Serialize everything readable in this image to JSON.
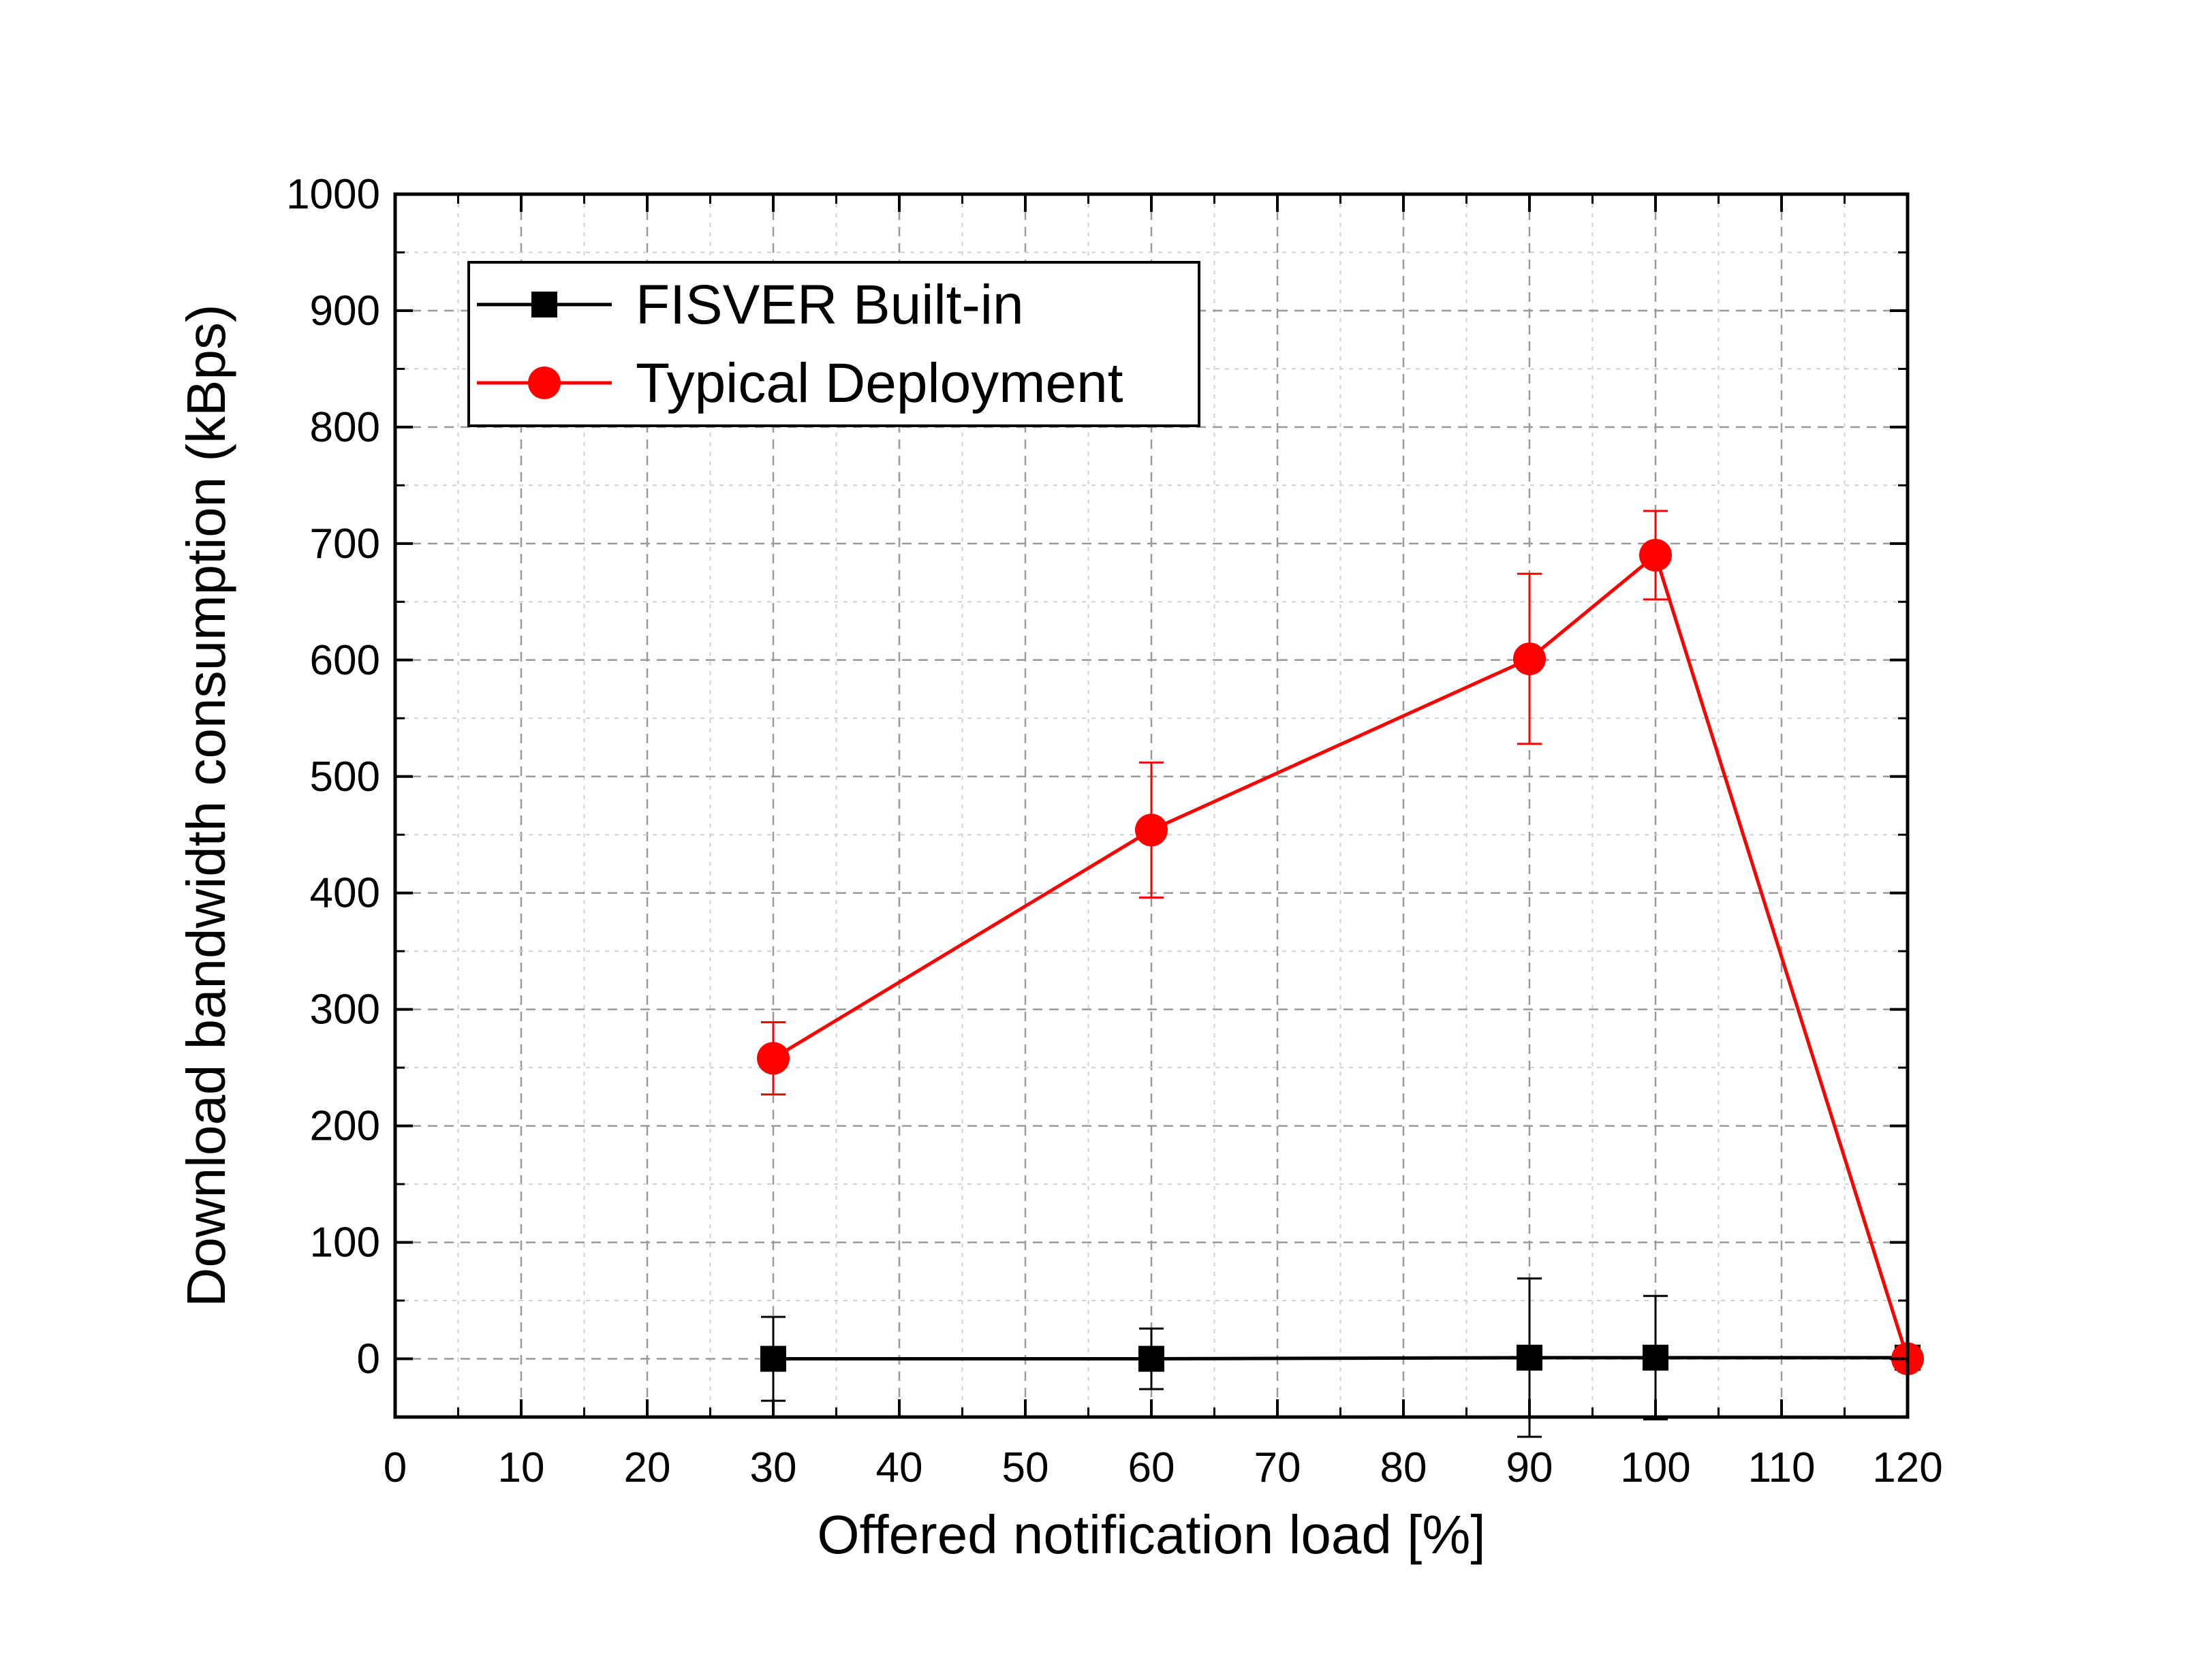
{
  "chart_data": {
    "type": "line",
    "title": "",
    "xlabel": "Offered notification load [%]",
    "ylabel": "Download bandwidth consumption (kBps)",
    "xlim": [
      0,
      120
    ],
    "ylim": [
      -50,
      1000
    ],
    "x_ticks": [
      0,
      10,
      20,
      30,
      40,
      50,
      60,
      70,
      80,
      90,
      100,
      110,
      120
    ],
    "y_ticks": [
      0,
      100,
      200,
      300,
      400,
      500,
      600,
      700,
      800,
      900,
      1000
    ],
    "grid": true,
    "legend_position": "top-left",
    "series": [
      {
        "name": "FISVER Built-in",
        "color": "#000000",
        "marker": "square",
        "x": [
          30,
          60,
          90,
          100,
          120
        ],
        "y": [
          0,
          0,
          1,
          1,
          1
        ],
        "error": [
          36,
          26,
          68,
          53,
          0
        ]
      },
      {
        "name": "Typical Deployment",
        "color": "#ff0000",
        "marker": "circle",
        "x": [
          30,
          60,
          90,
          100,
          120
        ],
        "y": [
          258,
          454,
          601,
          690,
          0
        ],
        "error": [
          31,
          58,
          73,
          38,
          0
        ]
      }
    ]
  }
}
